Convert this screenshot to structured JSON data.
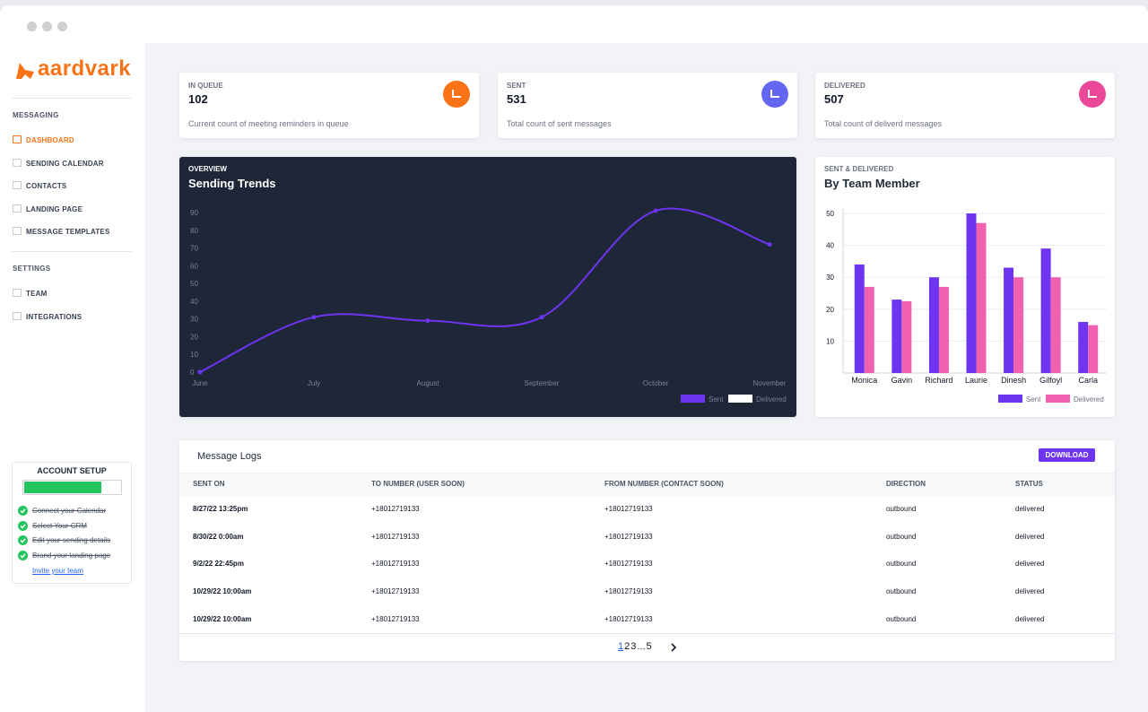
{
  "brand": "aardvark",
  "sidebar": [
    {
      "title": "MESSAGING",
      "items": [
        {
          "label": "DASHBOARD",
          "active": true
        },
        {
          "label": "SENDING CALENDAR",
          "active": false
        },
        {
          "label": "CONTACTS",
          "active": false
        },
        {
          "label": "LANDING PAGE",
          "active": false
        },
        {
          "label": "MESSAGE TEMPLATES",
          "active": false
        }
      ]
    },
    {
      "title": "SETTINGS",
      "items": [
        {
          "label": "TEAM",
          "active": false
        },
        {
          "label": "INTEGRATIONS",
          "active": false
        }
      ]
    }
  ],
  "account_setup": {
    "title": "ACCOUNT SETUP",
    "progress": 80,
    "tasks": [
      {
        "label": "Connect your Calendar",
        "done": true
      },
      {
        "label": "Select Your CRM",
        "done": true
      },
      {
        "label": "Edit your sending details",
        "done": true
      },
      {
        "label": "Brand your landing page",
        "done": true
      },
      {
        "label": "Invite your team",
        "done": false
      }
    ]
  },
  "stats": [
    {
      "label": "IN QUEUE",
      "value": 102,
      "description": "Current count of meeting reminders in queue",
      "color": "#f97316"
    },
    {
      "label": "SENT",
      "value": 531,
      "description": "Total count of sent messages",
      "color": "#6366f1"
    },
    {
      "label": "DELIVERED",
      "value": 507,
      "description": "Total count of deliverd messages",
      "color": "#ec4899"
    }
  ],
  "chart_data": [
    {
      "type": "line",
      "subtitle": "OVERVIEW",
      "title": "Sending Trends",
      "categories": [
        "June",
        "July",
        "August",
        "September",
        "October",
        "November"
      ],
      "series": [
        {
          "name": "Sent",
          "color": "#6d35f2",
          "values": [
            0,
            31,
            29,
            31,
            91,
            72
          ]
        },
        {
          "name": "Delivered",
          "color": "#ffffff",
          "values": [
            null,
            null,
            null,
            null,
            null,
            null
          ]
        }
      ],
      "ylim": [
        0,
        90
      ],
      "yticks": [
        0,
        10,
        20,
        30,
        40,
        50,
        60,
        70,
        80,
        90
      ],
      "grid": false,
      "legend": "bottom-right"
    },
    {
      "type": "bar",
      "subtitle": "SENT & DELIVERED",
      "title": "By Team Member",
      "categories": [
        "Monica",
        "Gavin",
        "Richard",
        "Laurie",
        "Dinesh",
        "Gilfoyl",
        "Carla"
      ],
      "series": [
        {
          "name": "Sent",
          "color": "#6d35f2",
          "values": [
            34,
            23,
            30,
            50,
            33,
            39,
            16
          ]
        },
        {
          "name": "Delivered",
          "color": "#f062b0",
          "values": [
            27,
            22.5,
            27,
            47,
            30,
            30,
            15
          ]
        }
      ],
      "ylim": [
        0,
        50
      ],
      "yticks": [
        10,
        20,
        30,
        40,
        50
      ],
      "grid": true,
      "legend": "bottom-right"
    }
  ],
  "table": {
    "title": "Message Logs",
    "action": "DOWNLOAD",
    "columns": [
      "SENT ON",
      "TO NUMBER (USER SOON)",
      "FROM NUMBER (CONTACT SOON)",
      "DIRECTION",
      "STATUS"
    ],
    "rows": [
      [
        "8/27/22 13:25pm",
        "+18012719133",
        "+18012719133",
        "outbound",
        "delivered"
      ],
      [
        "8/30/22 0:00am",
        "+18012719133",
        "+18012719133",
        "outbound",
        "delivered"
      ],
      [
        "9/2/22 22:45pm",
        "+18012719133",
        "+18012719133",
        "outbound",
        "delivered"
      ],
      [
        "10/29/22 10:00am",
        "+18012719133",
        "+18012719133",
        "outbound",
        "delivered"
      ],
      [
        "10/29/22 10:00am",
        "+18012719133",
        "+18012719133",
        "outbound",
        "delivered"
      ]
    ],
    "pagination": {
      "pages": [
        "1",
        "2",
        "3",
        "...",
        "5"
      ],
      "current_index": 0
    }
  }
}
